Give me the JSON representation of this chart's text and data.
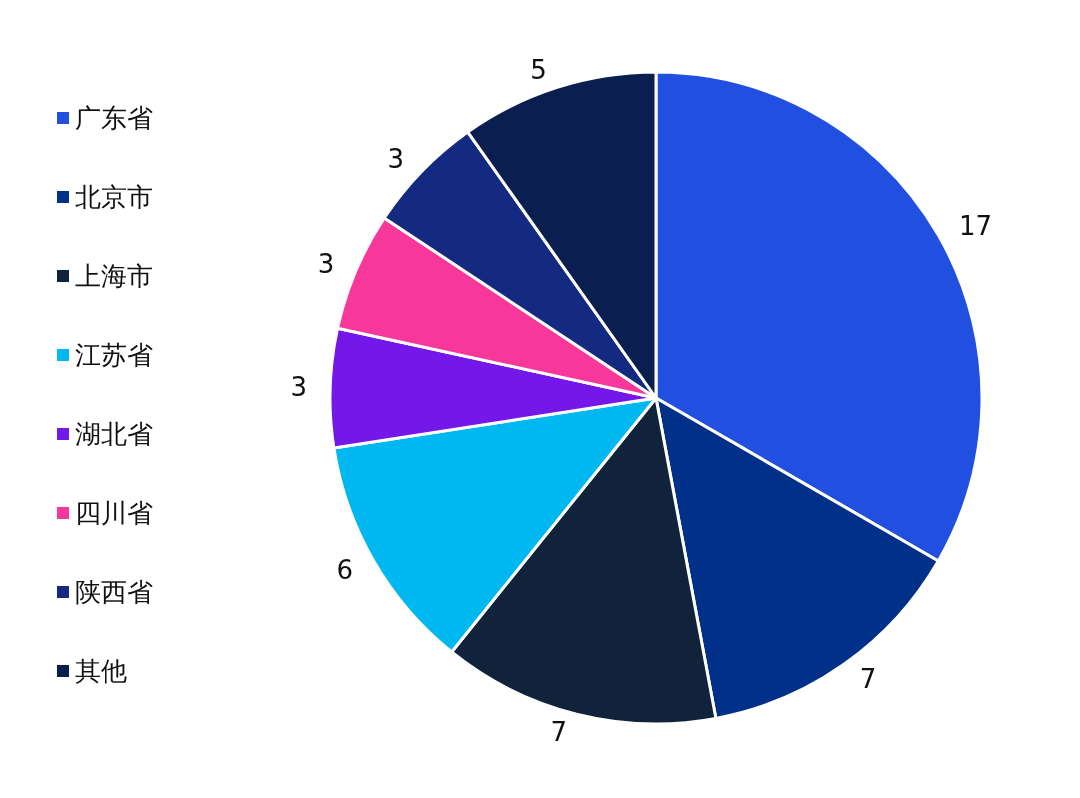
{
  "chart_data": {
    "type": "pie",
    "categories": [
      "广东省",
      "北京市",
      "上海市",
      "江苏省",
      "湖北省",
      "四川省",
      "陕西省",
      "其他"
    ],
    "values": [
      17,
      7,
      7,
      6,
      3,
      3,
      3,
      5
    ],
    "colors": [
      "#2150e0",
      "#003087",
      "#10233a",
      "#00b8f0",
      "#7318e8",
      "#f7379a",
      "#142a80",
      "#0a1f50"
    ],
    "data_labels": true,
    "legend": "left"
  }
}
